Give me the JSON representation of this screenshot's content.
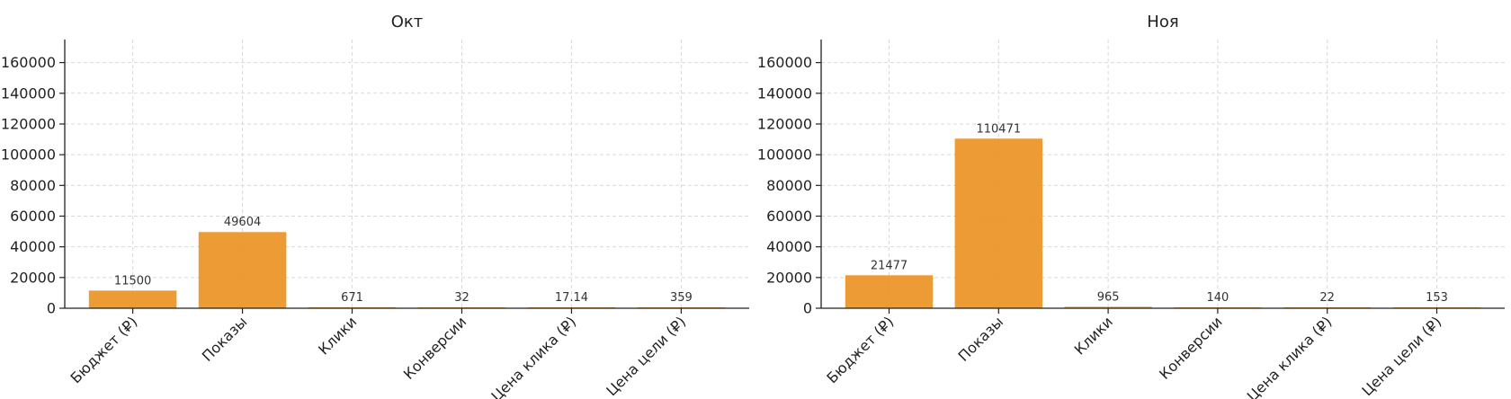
{
  "chart_data": [
    {
      "type": "bar",
      "title": "Окт",
      "categories": [
        "Бюджет (₽)",
        "Показы",
        "Клики",
        "Конверсии",
        "Цена клика (₽)",
        "Цена цели (₽)"
      ],
      "values": [
        11500,
        49604,
        671,
        32,
        17.14,
        359
      ],
      "value_labels": [
        "11500",
        "49604",
        "671",
        "32",
        "17.14",
        "359"
      ],
      "ylim": [
        0,
        175000
      ],
      "yticks": [
        0,
        20000,
        40000,
        60000,
        80000,
        100000,
        120000,
        140000,
        160000
      ],
      "ytick_labels": [
        "0",
        "20000",
        "40000",
        "60000",
        "80000",
        "100000",
        "120000",
        "140000",
        "160000"
      ],
      "xlabel": "",
      "ylabel": "",
      "grid": true,
      "bar_color": "#ec9424"
    },
    {
      "type": "bar",
      "title": "Ноя",
      "categories": [
        "Бюджет (₽)",
        "Показы",
        "Клики",
        "Конверсии",
        "Цена клика (₽)",
        "Цена цели (₽)"
      ],
      "values": [
        21477,
        110471,
        965,
        140,
        22,
        153
      ],
      "value_labels": [
        "21477",
        "110471",
        "965",
        "140",
        "22",
        "153"
      ],
      "ylim": [
        0,
        175000
      ],
      "yticks": [
        0,
        20000,
        40000,
        60000,
        80000,
        100000,
        120000,
        140000,
        160000
      ],
      "ytick_labels": [
        "0",
        "20000",
        "40000",
        "60000",
        "80000",
        "100000",
        "120000",
        "140000",
        "160000"
      ],
      "xlabel": "",
      "ylabel": "",
      "grid": true,
      "bar_color": "#ec9424"
    }
  ]
}
